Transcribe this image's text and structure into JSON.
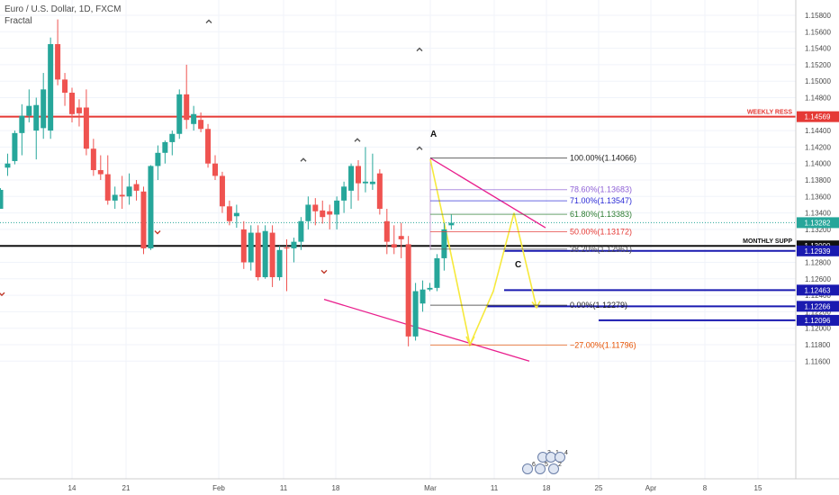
{
  "header": {
    "symbol_line": "Euro / U.S. Dollar, 1D, FXCM",
    "indicator": "Fractal"
  },
  "chart_data": {
    "type": "candlestick",
    "price_axis_ticks": [
      "1.15800",
      "1.15600",
      "1.15400",
      "1.15200",
      "1.15000",
      "1.14800",
      "1.14600",
      "1.14400",
      "1.14200",
      "1.14000",
      "1.13800",
      "1.13600",
      "1.13400",
      "1.13200",
      "1.13000",
      "1.12800",
      "1.12600",
      "1.12400",
      "1.12200",
      "1.12000",
      "1.11800",
      "1.11600"
    ],
    "price_axis_values": [
      1.158,
      1.156,
      1.154,
      1.152,
      1.15,
      1.148,
      1.146,
      1.144,
      1.142,
      1.14,
      1.138,
      1.136,
      1.134,
      1.132,
      1.13,
      1.128,
      1.126,
      1.124,
      1.122,
      1.12,
      1.118,
      1.116
    ],
    "ylim": [
      1.1155,
      1.1595
    ],
    "time_axis_labels": [
      "14",
      "21",
      "Feb",
      "11",
      "18",
      "Mar",
      "11",
      "18",
      "25",
      "Apr",
      "8",
      "15"
    ],
    "grid": true,
    "colors": {
      "up": "#26a69a",
      "down": "#ef5350",
      "weekly": "#e53935",
      "monthly": "#111111",
      "blue_level": "#1a1ab0",
      "fib_line": "#888888",
      "pink": "#e91e8c",
      "yellow": "#f6e93c"
    },
    "candles": [
      {
        "o": 1.1345,
        "h": 1.137,
        "l": 1.1345,
        "c": 1.1368
      },
      {
        "o": 1.1395,
        "h": 1.1412,
        "l": 1.1385,
        "c": 1.14
      },
      {
        "o": 1.1403,
        "h": 1.144,
        "l": 1.1399,
        "c": 1.1437
      },
      {
        "o": 1.1437,
        "h": 1.1472,
        "l": 1.141,
        "c": 1.1458
      },
      {
        "o": 1.1458,
        "h": 1.149,
        "l": 1.145,
        "c": 1.147
      },
      {
        "o": 1.144,
        "h": 1.148,
        "l": 1.1405,
        "c": 1.1471
      },
      {
        "o": 1.1443,
        "h": 1.151,
        "l": 1.143,
        "c": 1.149
      },
      {
        "o": 1.144,
        "h": 1.1553,
        "l": 1.143,
        "c": 1.1545
      },
      {
        "o": 1.1545,
        "h": 1.1575,
        "l": 1.1495,
        "c": 1.1502
      },
      {
        "o": 1.1502,
        "h": 1.151,
        "l": 1.147,
        "c": 1.1486
      },
      {
        "o": 1.1486,
        "h": 1.1492,
        "l": 1.145,
        "c": 1.146
      },
      {
        "o": 1.1468,
        "h": 1.1478,
        "l": 1.1445,
        "c": 1.1461
      },
      {
        "o": 1.1468,
        "h": 1.149,
        "l": 1.141,
        "c": 1.1418
      },
      {
        "o": 1.1418,
        "h": 1.143,
        "l": 1.1385,
        "c": 1.1392
      },
      {
        "o": 1.1392,
        "h": 1.141,
        "l": 1.138,
        "c": 1.1387
      },
      {
        "o": 1.1387,
        "h": 1.141,
        "l": 1.135,
        "c": 1.1355
      },
      {
        "o": 1.1355,
        "h": 1.1372,
        "l": 1.1345,
        "c": 1.1362
      },
      {
        "o": 1.1362,
        "h": 1.1385,
        "l": 1.1345,
        "c": 1.136
      },
      {
        "o": 1.136,
        "h": 1.1388,
        "l": 1.135,
        "c": 1.1372
      },
      {
        "o": 1.1375,
        "h": 1.138,
        "l": 1.1355,
        "c": 1.1367
      },
      {
        "o": 1.1366,
        "h": 1.1372,
        "l": 1.129,
        "c": 1.1297
      },
      {
        "o": 1.1297,
        "h": 1.1398,
        "l": 1.1295,
        "c": 1.1397
      },
      {
        "o": 1.1397,
        "h": 1.1422,
        "l": 1.138,
        "c": 1.1413
      },
      {
        "o": 1.1413,
        "h": 1.1428,
        "l": 1.14,
        "c": 1.1426
      },
      {
        "o": 1.1426,
        "h": 1.144,
        "l": 1.141,
        "c": 1.1436
      },
      {
        "o": 1.1436,
        "h": 1.149,
        "l": 1.143,
        "c": 1.1484
      },
      {
        "o": 1.1484,
        "h": 1.152,
        "l": 1.1442,
        "c": 1.1453
      },
      {
        "o": 1.1448,
        "h": 1.147,
        "l": 1.144,
        "c": 1.146
      },
      {
        "o": 1.1453,
        "h": 1.1462,
        "l": 1.1438,
        "c": 1.1442
      },
      {
        "o": 1.1442,
        "h": 1.1448,
        "l": 1.1395,
        "c": 1.14
      },
      {
        "o": 1.14,
        "h": 1.141,
        "l": 1.138,
        "c": 1.1385
      },
      {
        "o": 1.1385,
        "h": 1.139,
        "l": 1.134,
        "c": 1.1348
      },
      {
        "o": 1.1348,
        "h": 1.1355,
        "l": 1.1325,
        "c": 1.133
      },
      {
        "o": 1.1336,
        "h": 1.135,
        "l": 1.1322,
        "c": 1.134
      },
      {
        "o": 1.132,
        "h": 1.133,
        "l": 1.1272,
        "c": 1.128
      },
      {
        "o": 1.128,
        "h": 1.1325,
        "l": 1.127,
        "c": 1.1316
      },
      {
        "o": 1.1316,
        "h": 1.1325,
        "l": 1.1258,
        "c": 1.1262
      },
      {
        "o": 1.1262,
        "h": 1.1325,
        "l": 1.126,
        "c": 1.1318
      },
      {
        "o": 1.1316,
        "h": 1.1325,
        "l": 1.125,
        "c": 1.1262
      },
      {
        "o": 1.1262,
        "h": 1.13,
        "l": 1.1258,
        "c": 1.1295
      },
      {
        "o": 1.1298,
        "h": 1.1308,
        "l": 1.1245,
        "c": 1.1297
      },
      {
        "o": 1.1297,
        "h": 1.131,
        "l": 1.128,
        "c": 1.1305
      },
      {
        "o": 1.1305,
        "h": 1.1335,
        "l": 1.1295,
        "c": 1.133
      },
      {
        "o": 1.133,
        "h": 1.136,
        "l": 1.132,
        "c": 1.135
      },
      {
        "o": 1.135,
        "h": 1.1358,
        "l": 1.1325,
        "c": 1.1342
      },
      {
        "o": 1.1343,
        "h": 1.1355,
        "l": 1.1327,
        "c": 1.1335
      },
      {
        "o": 1.1342,
        "h": 1.135,
        "l": 1.132,
        "c": 1.1338
      },
      {
        "o": 1.1338,
        "h": 1.136,
        "l": 1.132,
        "c": 1.1355
      },
      {
        "o": 1.1355,
        "h": 1.1378,
        "l": 1.134,
        "c": 1.1372
      },
      {
        "o": 1.1367,
        "h": 1.14,
        "l": 1.1345,
        "c": 1.1397
      },
      {
        "o": 1.1397,
        "h": 1.1404,
        "l": 1.1355,
        "c": 1.1376
      },
      {
        "o": 1.1376,
        "h": 1.142,
        "l": 1.1365,
        "c": 1.1378
      },
      {
        "o": 1.1375,
        "h": 1.1412,
        "l": 1.1368,
        "c": 1.1378
      },
      {
        "o": 1.1388,
        "h": 1.1393,
        "l": 1.1338,
        "c": 1.1345
      },
      {
        "o": 1.133,
        "h": 1.1345,
        "l": 1.129,
        "c": 1.1305
      },
      {
        "o": 1.1302,
        "h": 1.1325,
        "l": 1.129,
        "c": 1.1298
      },
      {
        "o": 1.1312,
        "h": 1.1328,
        "l": 1.1285,
        "c": 1.1308
      },
      {
        "o": 1.1302,
        "h": 1.1312,
        "l": 1.1178,
        "c": 1.119
      },
      {
        "o": 1.119,
        "h": 1.1255,
        "l": 1.1185,
        "c": 1.1245
      },
      {
        "o": 1.123,
        "h": 1.1258,
        "l": 1.122,
        "c": 1.1247
      },
      {
        "o": 1.1247,
        "h": 1.1255,
        "l": 1.1245,
        "c": 1.1249
      },
      {
        "o": 1.1249,
        "h": 1.129,
        "l": 1.1245,
        "c": 1.1285
      },
      {
        "o": 1.1285,
        "h": 1.1328,
        "l": 1.127,
        "c": 1.132
      },
      {
        "o": 1.1325,
        "h": 1.1338,
        "l": 1.132,
        "c": 1.1328
      }
    ],
    "fractals_up": [
      {
        "i": 33,
        "y": 1.1574
      },
      {
        "i": 37,
        "y": 1.154
      },
      {
        "i": 49,
        "y": 1.143
      },
      {
        "i": 57,
        "y": 1.1406
      },
      {
        "i": 63,
        "y": 1.142
      }
    ],
    "fractals_down": [
      {
        "i": 23,
        "y": 1.1315
      },
      {
        "i": 34,
        "y": 1.1267
      },
      {
        "i": 52,
        "y": 1.124
      }
    ],
    "fib_levels": [
      {
        "label": "100.00%(1.14066)",
        "price": 1.14066,
        "color": "#222222"
      },
      {
        "label": "78.60%(1.13683)",
        "price": 1.13683,
        "color": "#8e60d6"
      },
      {
        "label": "71.00%(1.13547)",
        "price": 1.13547,
        "color": "#2a2ad6"
      },
      {
        "label": "61.80%(1.13383)",
        "price": 1.13383,
        "color": "#2e7d32"
      },
      {
        "label": "50.00%(1.13172)",
        "price": 1.13172,
        "color": "#e53935"
      },
      {
        "label": "38.20%(1.12961)",
        "price": 1.12961,
        "color": "#555555"
      },
      {
        "label": "0.00%(1.12279)",
        "price": 1.12279,
        "color": "#222222"
      },
      {
        "label": "−27.00%(1.11796)",
        "price": 1.11796,
        "color": "#e65100"
      }
    ],
    "horizontal_levels": [
      {
        "label": "WEEKLY RESS",
        "price": 1.14569,
        "color": "#e53935",
        "tag": "1.14569"
      },
      {
        "label": "MONTHLY SUPP",
        "price": 1.13,
        "color": "#111111",
        "tag": "1.13000"
      }
    ],
    "blue_levels": [
      {
        "price": 1.12939,
        "tag": "1.12939"
      },
      {
        "price": 1.12463,
        "tag": "1.12463"
      },
      {
        "price": 1.12266,
        "tag": "1.12266"
      },
      {
        "price": 1.12096,
        "tag": "1.12096"
      }
    ],
    "current_price": {
      "value": 1.13282,
      "tag": "1.13282",
      "color": "#26a69a"
    },
    "points": {
      "A": "A",
      "C": "C"
    },
    "event_numbers": [
      "3",
      "1",
      "4",
      "6",
      "5",
      "2"
    ]
  }
}
